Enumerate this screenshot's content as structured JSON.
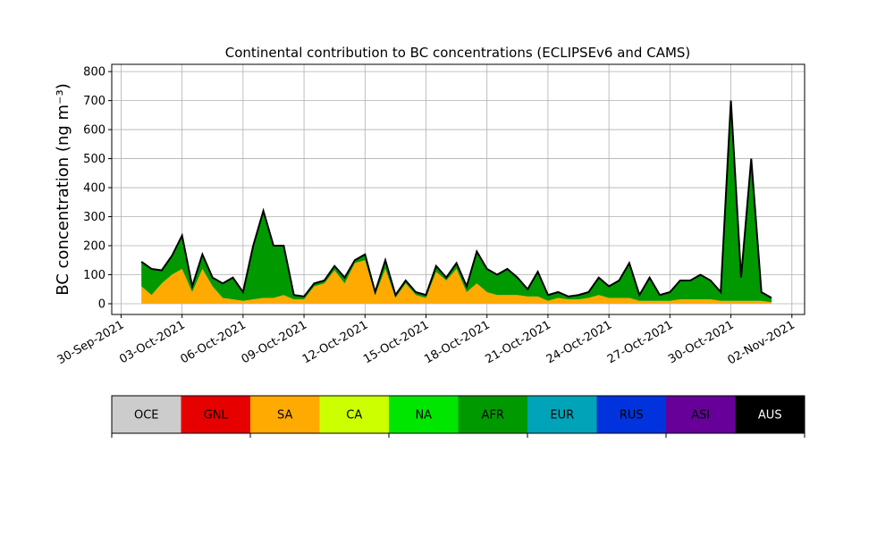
{
  "chart_data": {
    "type": "stacked_area",
    "title": "Continental contribution to BC concentrations (ECLIPSEv6 and CAMS)",
    "ylabel": "BC concentration (ng m⁻³)",
    "x": [
      "2021-10-01 00:00",
      "2021-10-01 12:00",
      "2021-10-02 00:00",
      "2021-10-02 12:00",
      "2021-10-03 00:00",
      "2021-10-03 12:00",
      "2021-10-04 00:00",
      "2021-10-04 12:00",
      "2021-10-05 00:00",
      "2021-10-05 12:00",
      "2021-10-06 00:00",
      "2021-10-06 12:00",
      "2021-10-07 00:00",
      "2021-10-07 12:00",
      "2021-10-08 00:00",
      "2021-10-08 12:00",
      "2021-10-09 00:00",
      "2021-10-09 12:00",
      "2021-10-10 00:00",
      "2021-10-10 12:00",
      "2021-10-11 00:00",
      "2021-10-11 12:00",
      "2021-10-12 00:00",
      "2021-10-12 12:00",
      "2021-10-13 00:00",
      "2021-10-13 12:00",
      "2021-10-14 00:00",
      "2021-10-14 12:00",
      "2021-10-15 00:00",
      "2021-10-15 12:00",
      "2021-10-16 00:00",
      "2021-10-16 12:00",
      "2021-10-17 00:00",
      "2021-10-17 12:00",
      "2021-10-18 00:00",
      "2021-10-18 12:00",
      "2021-10-19 00:00",
      "2021-10-19 12:00",
      "2021-10-20 00:00",
      "2021-10-20 12:00",
      "2021-10-21 00:00",
      "2021-10-21 12:00",
      "2021-10-22 00:00",
      "2021-10-22 12:00",
      "2021-10-23 00:00",
      "2021-10-23 12:00",
      "2021-10-24 00:00",
      "2021-10-24 12:00",
      "2021-10-25 00:00",
      "2021-10-25 12:00",
      "2021-10-26 00:00",
      "2021-10-26 12:00",
      "2021-10-27 00:00",
      "2021-10-27 12:00",
      "2021-10-28 00:00",
      "2021-10-28 12:00",
      "2021-10-29 00:00",
      "2021-10-29 12:00",
      "2021-10-30 00:00",
      "2021-10-30 12:00",
      "2021-10-31 00:00",
      "2021-10-31 12:00",
      "2021-11-01 00:00"
    ],
    "series": [
      {
        "name": "SA",
        "color": "#ffaa00",
        "values": [
          60,
          30,
          70,
          100,
          120,
          40,
          120,
          60,
          20,
          15,
          10,
          15,
          20,
          20,
          30,
          15,
          15,
          60,
          70,
          115,
          70,
          140,
          150,
          30,
          120,
          20,
          70,
          30,
          20,
          110,
          80,
          120,
          40,
          70,
          40,
          30,
          30,
          30,
          25,
          25,
          10,
          20,
          15,
          15,
          20,
          30,
          20,
          20,
          20,
          10,
          10,
          10,
          10,
          15,
          15,
          15,
          15,
          10,
          10,
          10,
          10,
          10,
          5
        ]
      },
      {
        "name": "AFR",
        "color": "#009900",
        "values": [
          85,
          90,
          45,
          65,
          115,
          20,
          50,
          30,
          50,
          75,
          30,
          185,
          300,
          180,
          170,
          15,
          10,
          10,
          10,
          15,
          20,
          10,
          20,
          10,
          30,
          10,
          10,
          10,
          10,
          20,
          10,
          20,
          20,
          110,
          80,
          70,
          90,
          60,
          25,
          85,
          20,
          20,
          10,
          15,
          20,
          60,
          40,
          60,
          120,
          20,
          80,
          20,
          30,
          65,
          65,
          85,
          65,
          30,
          690,
          80,
          490,
          30,
          15
        ]
      }
    ],
    "colorbar": [
      {
        "name": "OCE",
        "color": "#cccccc"
      },
      {
        "name": "GNL",
        "color": "#e60000"
      },
      {
        "name": "SA",
        "color": "#ffaa00"
      },
      {
        "name": "CA",
        "color": "#ccff00"
      },
      {
        "name": "NA",
        "color": "#00e600"
      },
      {
        "name": "AFR",
        "color": "#009900"
      },
      {
        "name": "EUR",
        "color": "#00a3b8"
      },
      {
        "name": "RUS",
        "color": "#0033dd"
      },
      {
        "name": "ASI",
        "color": "#660099"
      },
      {
        "name": "AUS",
        "color": "#000000"
      }
    ],
    "xlim": [
      "2021-09-29 13:00",
      "2021-11-02 15:00"
    ],
    "xticks": [
      {
        "value": "2021-09-30 00:00",
        "label": "30-Sep-2021"
      },
      {
        "value": "2021-10-03 00:00",
        "label": "03-Oct-2021"
      },
      {
        "value": "2021-10-06 00:00",
        "label": "06-Oct-2021"
      },
      {
        "value": "2021-10-09 00:00",
        "label": "09-Oct-2021"
      },
      {
        "value": "2021-10-12 00:00",
        "label": "12-Oct-2021"
      },
      {
        "value": "2021-10-15 00:00",
        "label": "15-Oct-2021"
      },
      {
        "value": "2021-10-18 00:00",
        "label": "18-Oct-2021"
      },
      {
        "value": "2021-10-21 00:00",
        "label": "21-Oct-2021"
      },
      {
        "value": "2021-10-24 00:00",
        "label": "24-Oct-2021"
      },
      {
        "value": "2021-10-27 00:00",
        "label": "27-Oct-2021"
      },
      {
        "value": "2021-10-30 00:00",
        "label": "30-Oct-2021"
      },
      {
        "value": "2021-11-02 00:00",
        "label": "02-Nov-2021"
      }
    ],
    "ylim": [
      -37,
      825
    ],
    "yticks": [
      0,
      100,
      200,
      300,
      400,
      500,
      600,
      700,
      800
    ],
    "grid": true
  }
}
